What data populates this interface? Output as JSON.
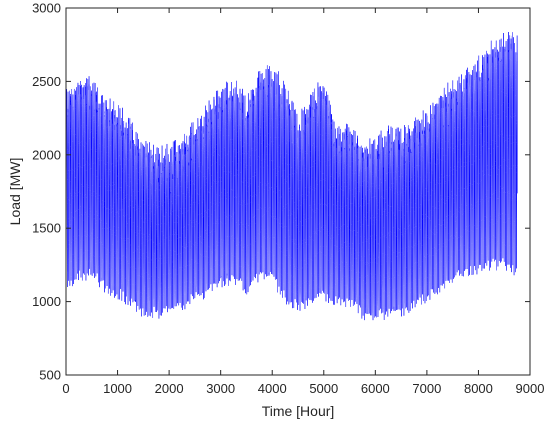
{
  "chart_data": {
    "type": "line",
    "title": "",
    "xlabel": "Time [Hour]",
    "ylabel": "Load [MW]",
    "xlim": [
      0,
      9000
    ],
    "ylim": [
      500,
      3000
    ],
    "xticks": [
      0,
      1000,
      2000,
      3000,
      4000,
      5000,
      6000,
      7000,
      8000,
      9000
    ],
    "yticks": [
      500,
      1000,
      1500,
      2000,
      2500,
      3000
    ],
    "xtick_labels": [
      "0",
      "1000",
      "2000",
      "3000",
      "4000",
      "5000",
      "6000",
      "7000",
      "8000",
      "9000"
    ],
    "ytick_labels": [
      "500",
      "1000",
      "1500",
      "2000",
      "2500",
      "3000"
    ],
    "grid": false,
    "series": [
      {
        "color": "#0000ff",
        "sampling": "hourly load, 8760 points; daily swing between the daily minimum and the daily peak",
        "daily_envelope_hours": [
          0,
          250,
          500,
          750,
          1000,
          1250,
          1500,
          1750,
          2000,
          2250,
          2500,
          2750,
          3000,
          3250,
          3500,
          3750,
          4000,
          4250,
          4500,
          4750,
          5000,
          5250,
          5500,
          5750,
          6000,
          6250,
          6500,
          6750,
          7000,
          7250,
          7500,
          7750,
          8000,
          8250,
          8500,
          8760
        ],
        "daily_peak_mw": [
          2390,
          2480,
          2470,
          2330,
          2290,
          2180,
          2060,
          2000,
          2020,
          2070,
          2180,
          2280,
          2410,
          2460,
          2330,
          2520,
          2550,
          2430,
          2210,
          2350,
          2480,
          2130,
          2160,
          2010,
          2060,
          2140,
          2120,
          2180,
          2240,
          2380,
          2440,
          2520,
          2600,
          2700,
          2790,
          2770
        ],
        "daily_min_mw": [
          1100,
          1180,
          1190,
          1100,
          1060,
          1000,
          930,
          920,
          950,
          980,
          1020,
          1080,
          1140,
          1160,
          1090,
          1180,
          1160,
          1030,
          960,
          1000,
          1050,
          1000,
          1010,
          920,
          900,
          920,
          940,
          980,
          1040,
          1100,
          1160,
          1200,
          1230,
          1260,
          1250,
          1200
        ]
      }
    ]
  }
}
